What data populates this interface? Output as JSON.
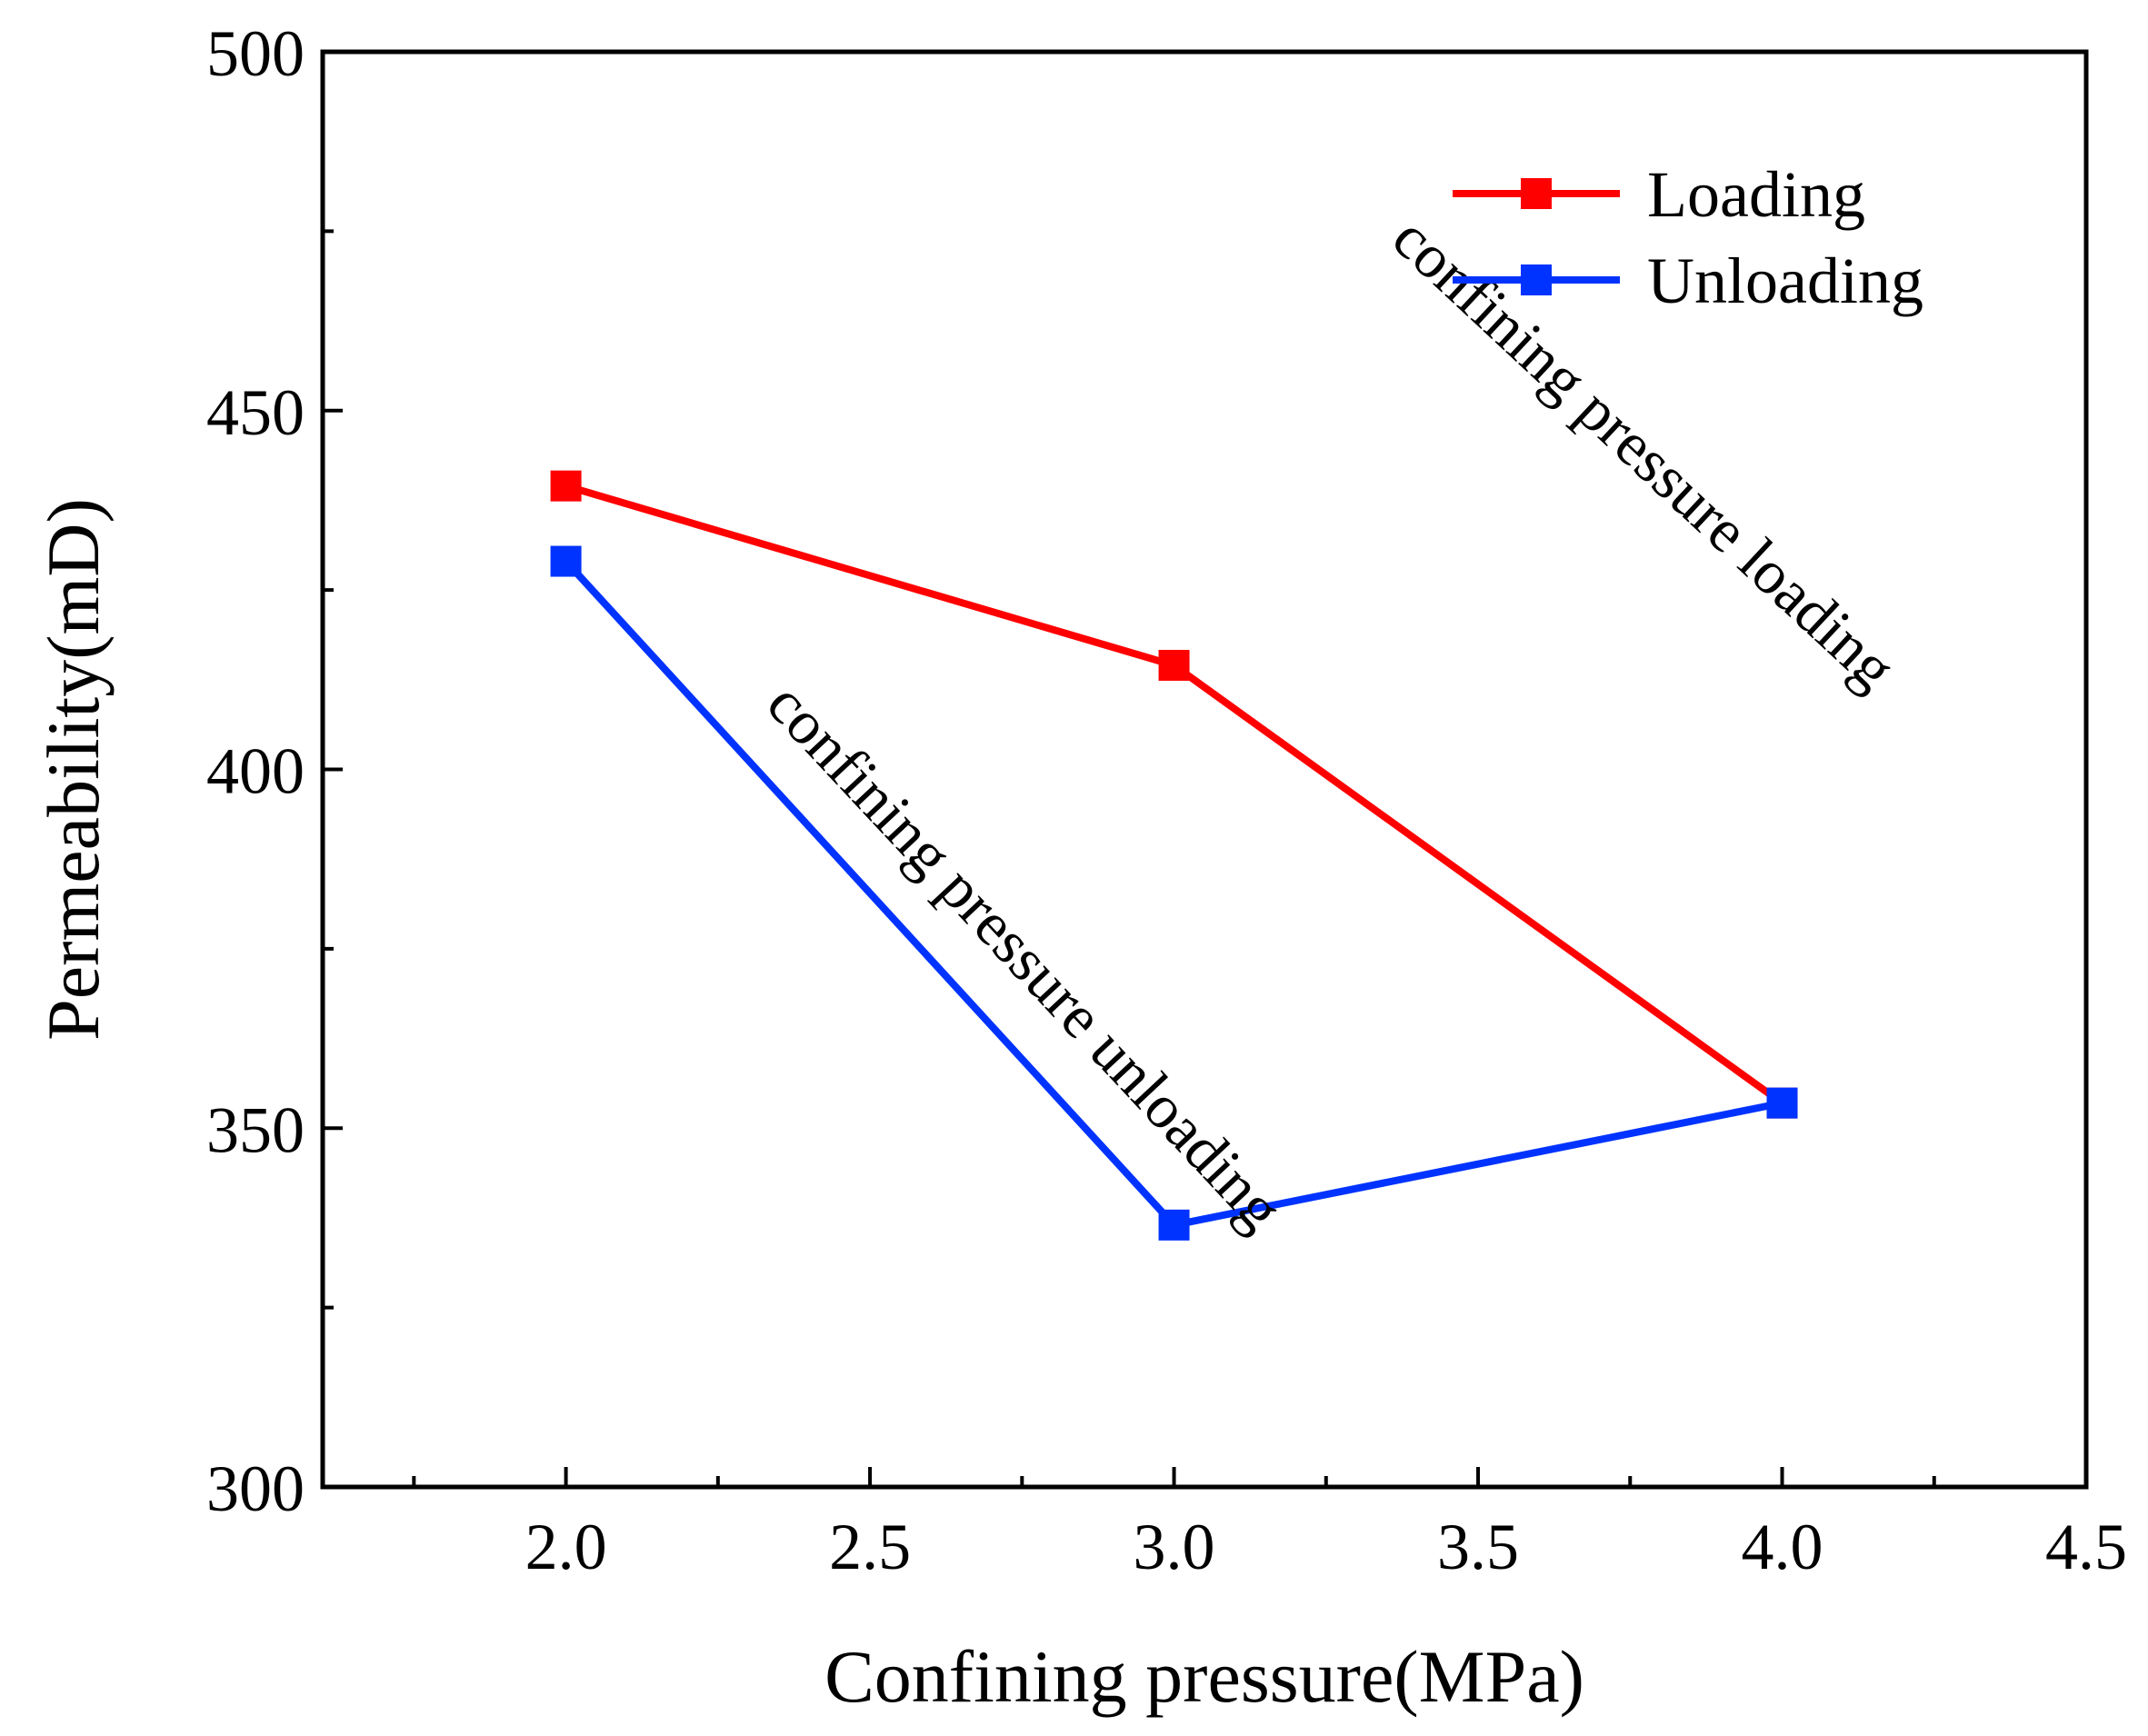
{
  "chart_data": {
    "type": "line",
    "xlabel": "Confining pressure(MPa)",
    "ylabel": "Permeability(mD)",
    "xlim": [
      1.6,
      4.5
    ],
    "ylim": [
      300,
      500
    ],
    "xticks": [
      2.0,
      2.5,
      3.0,
      3.5,
      4.0,
      4.5
    ],
    "xtick_labels": [
      "2.0",
      "2.5",
      "3.0",
      "3.5",
      "4.0",
      "4.5"
    ],
    "yticks": [
      300,
      350,
      400,
      450,
      500
    ],
    "ytick_labels": [
      "300",
      "350",
      "400",
      "450",
      "500"
    ],
    "grid": false,
    "legend_position": "top-right",
    "series": [
      {
        "name": "Loading",
        "color": "#ff0000",
        "marker": "square",
        "x": [
          2.0,
          3.0,
          4.0
        ],
        "y": [
          439.5,
          414.5,
          353.5
        ]
      },
      {
        "name": "Unloading",
        "color": "#0033ff",
        "marker": "square",
        "x": [
          2.0,
          3.0,
          4.0
        ],
        "y": [
          429,
          336.5,
          353.5
        ]
      }
    ],
    "annotations": [
      {
        "text": "confining pressure loading",
        "x": 3.75,
        "y": 442,
        "rotation": 43
      },
      {
        "text": "confining pressure unloading",
        "x": 2.73,
        "y": 372,
        "rotation": 47
      }
    ]
  }
}
